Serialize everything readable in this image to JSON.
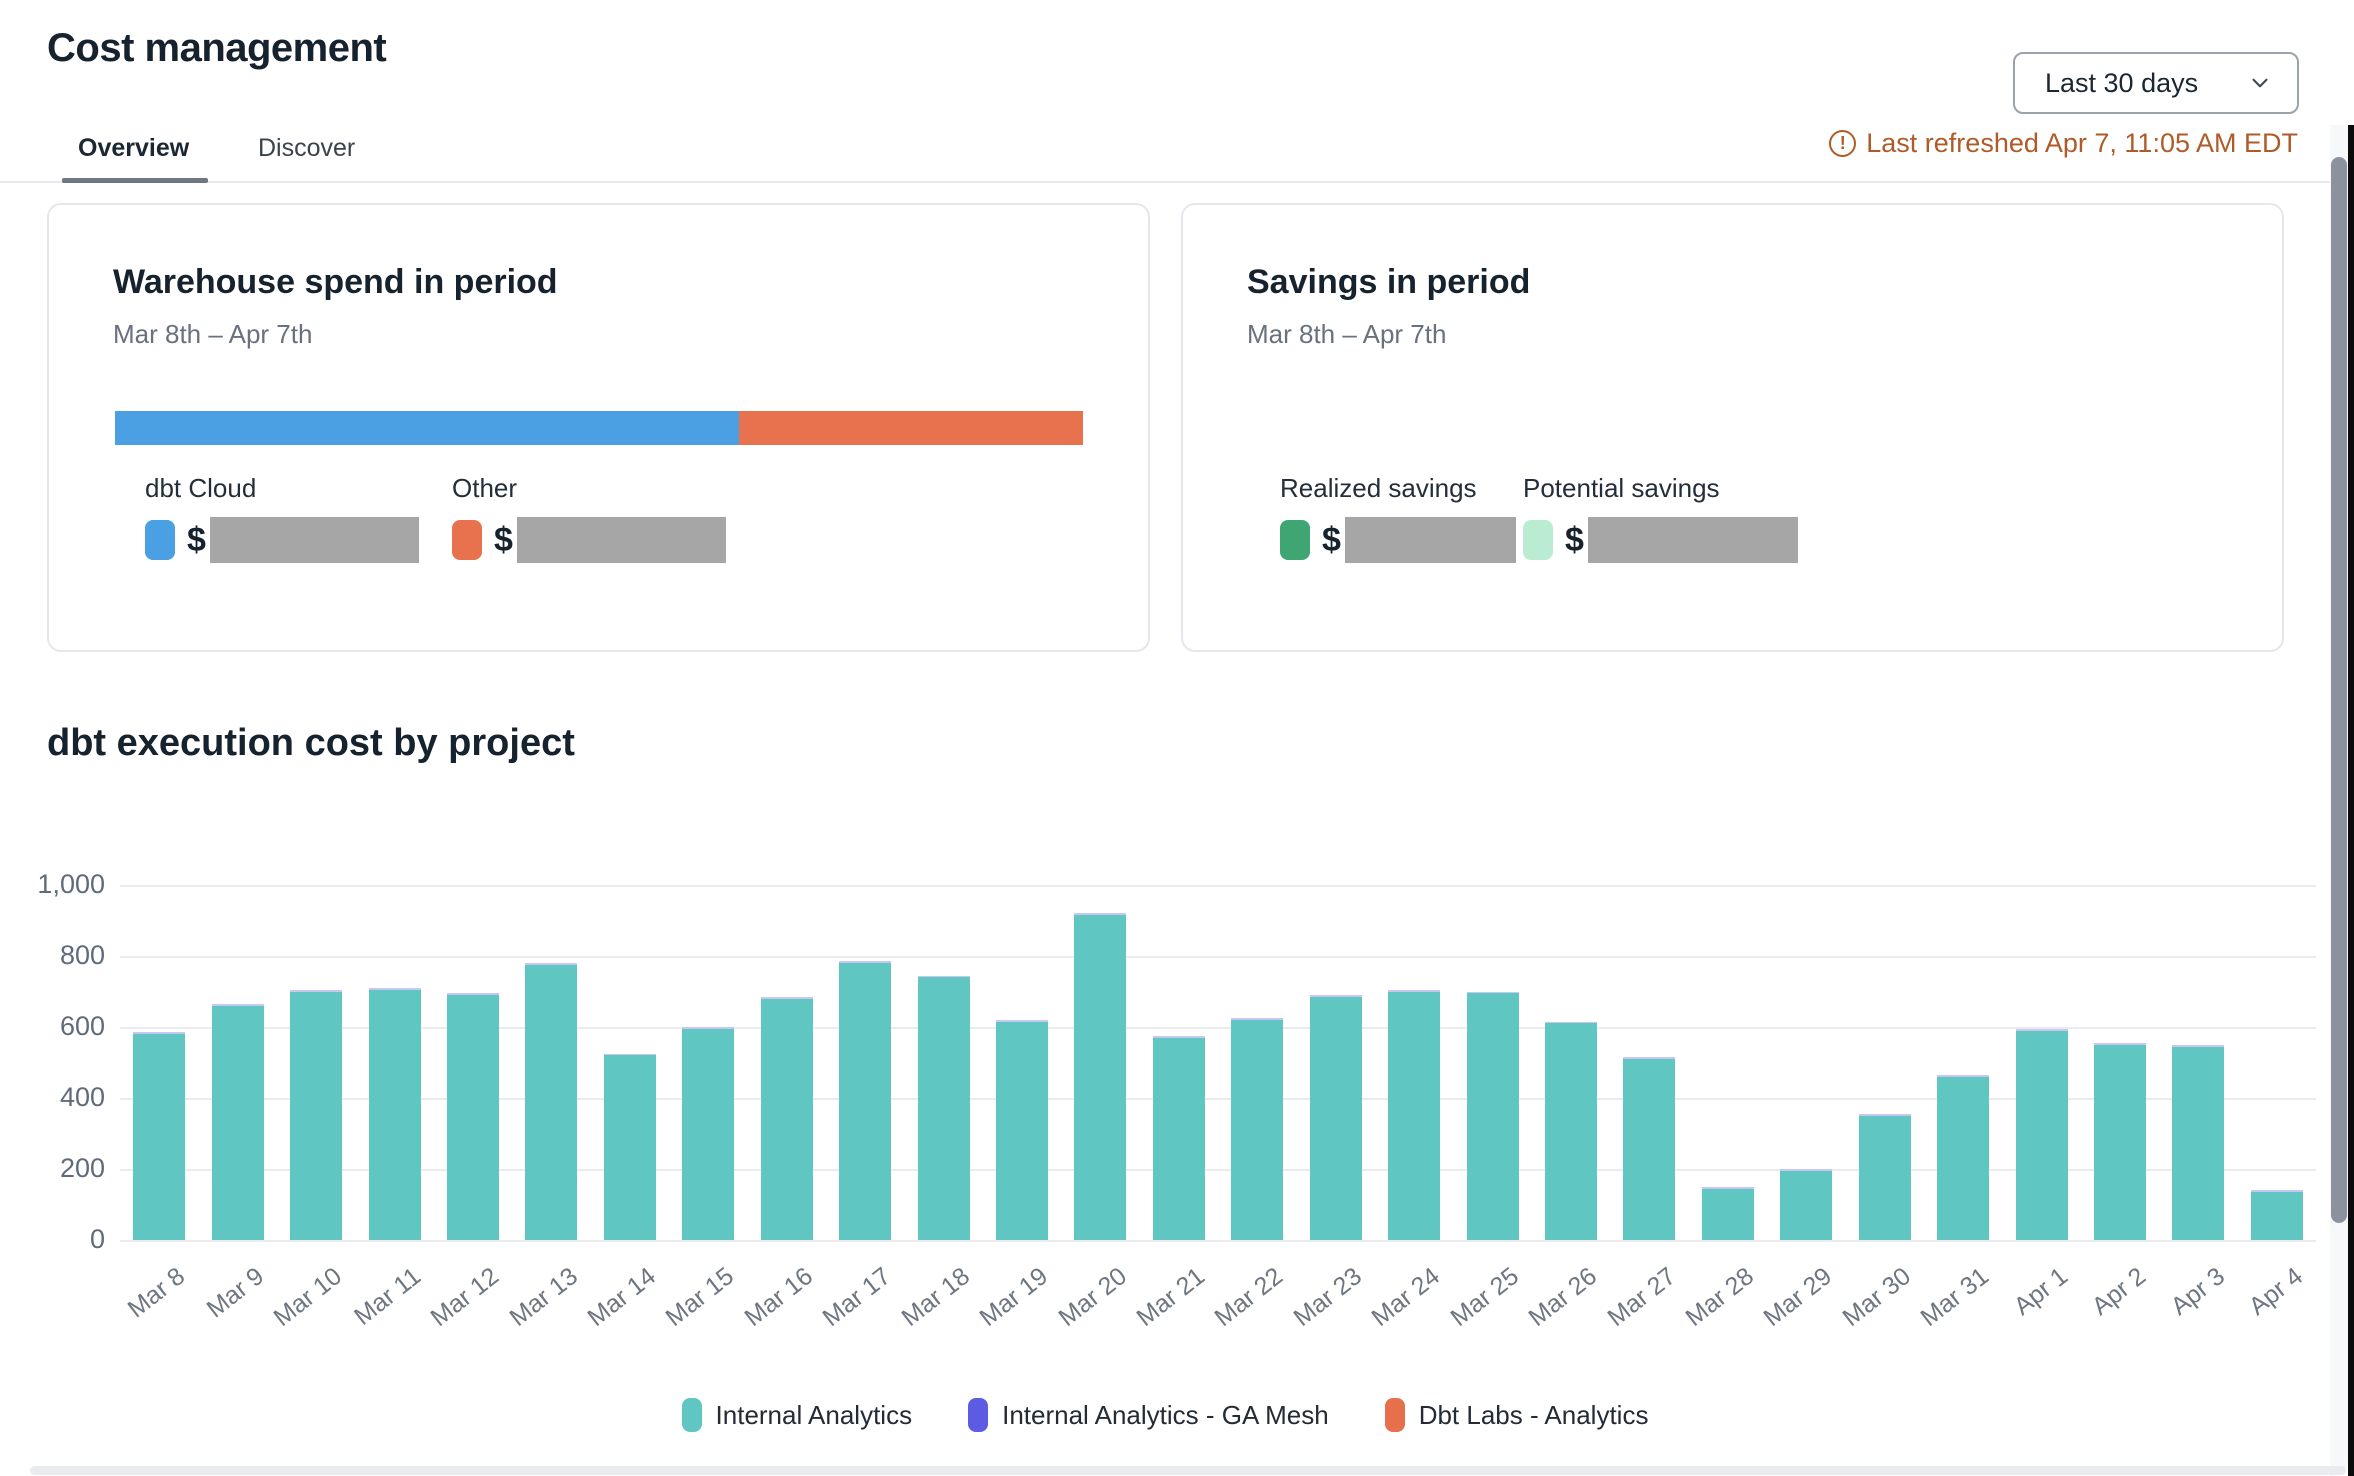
{
  "page": {
    "title": "Cost management"
  },
  "header": {
    "date_range_selector": {
      "value": "Last 30 days",
      "chevron_icon": "chevron-down"
    },
    "last_refreshed": "Last refreshed Apr 7, 11:05 AM EDT",
    "warning_icon_glyph": "!"
  },
  "tabs": [
    {
      "label": "Overview",
      "active": true
    },
    {
      "label": "Discover",
      "active": false
    }
  ],
  "cards": {
    "warehouse_spend": {
      "title": "Warehouse spend in period",
      "subtitle": "Mar 8th – Apr 7th",
      "bar": {
        "dbt_cloud_pct": 64.5,
        "other_pct": 35.5,
        "dbt_cloud_color": "#4aa0e3",
        "other_color": "#e8724e"
      },
      "legend": [
        {
          "label": "dbt Cloud",
          "color": "#4aa0e3",
          "value_prefix": "$",
          "value_redacted": true
        },
        {
          "label": "Other",
          "color": "#e8724e",
          "value_prefix": "$",
          "value_redacted": true
        }
      ]
    },
    "savings": {
      "title": "Savings in period",
      "subtitle": "Mar 8th – Apr 7th",
      "legend": [
        {
          "label": "Realized savings",
          "color": "#3fa573",
          "value_prefix": "$",
          "value_redacted": true
        },
        {
          "label": "Potential savings",
          "color": "#b9ecd0",
          "value_prefix": "$",
          "value_redacted": true
        }
      ]
    }
  },
  "chart_section": {
    "title": "dbt execution cost by project"
  },
  "chart_data": {
    "type": "bar",
    "stacked": true,
    "title": "dbt execution cost by project",
    "xlabel": "",
    "ylabel": "",
    "ylim": [
      0,
      1000
    ],
    "yticks": [
      0,
      200,
      400,
      600,
      800,
      1000
    ],
    "grid": true,
    "legend_position": "bottom",
    "categories": [
      "Mar 8",
      "Mar 9",
      "Mar 10",
      "Mar 11",
      "Mar 12",
      "Mar 13",
      "Mar 14",
      "Mar 15",
      "Mar 16",
      "Mar 17",
      "Mar 18",
      "Mar 19",
      "Mar 20",
      "Mar 21",
      "Mar 22",
      "Mar 23",
      "Mar 24",
      "Mar 25",
      "Mar 26",
      "Mar 27",
      "Mar 28",
      "Mar 29",
      "Mar 30",
      "Mar 31",
      "Apr 1",
      "Apr 2",
      "Apr 3",
      "Apr 4"
    ],
    "series": [
      {
        "name": "Internal Analytics",
        "color": "#5fc6c1",
        "values": [
          580,
          660,
          700,
          705,
          690,
          775,
          520,
          595,
          680,
          780,
          740,
          615,
          915,
          570,
          620,
          685,
          700,
          695,
          610,
          510,
          145,
          195,
          350,
          460,
          590,
          550,
          545,
          135
        ]
      },
      {
        "name": "Internal Analytics - GA Mesh",
        "color": "#5b5ce2",
        "bar_tint": "#c6c8f2",
        "values": [
          5,
          5,
          5,
          5,
          5,
          5,
          5,
          5,
          5,
          5,
          5,
          5,
          5,
          5,
          5,
          5,
          5,
          5,
          5,
          5,
          5,
          5,
          5,
          5,
          5,
          5,
          5,
          5
        ]
      },
      {
        "name": "Dbt Labs - Analytics",
        "color": "#e7704c",
        "values": [
          0,
          0,
          0,
          0,
          0,
          0,
          0,
          0,
          0,
          0,
          0,
          0,
          0,
          0,
          0,
          0,
          0,
          0,
          0,
          0,
          0,
          0,
          0,
          0,
          0,
          0,
          0,
          0
        ]
      }
    ]
  }
}
